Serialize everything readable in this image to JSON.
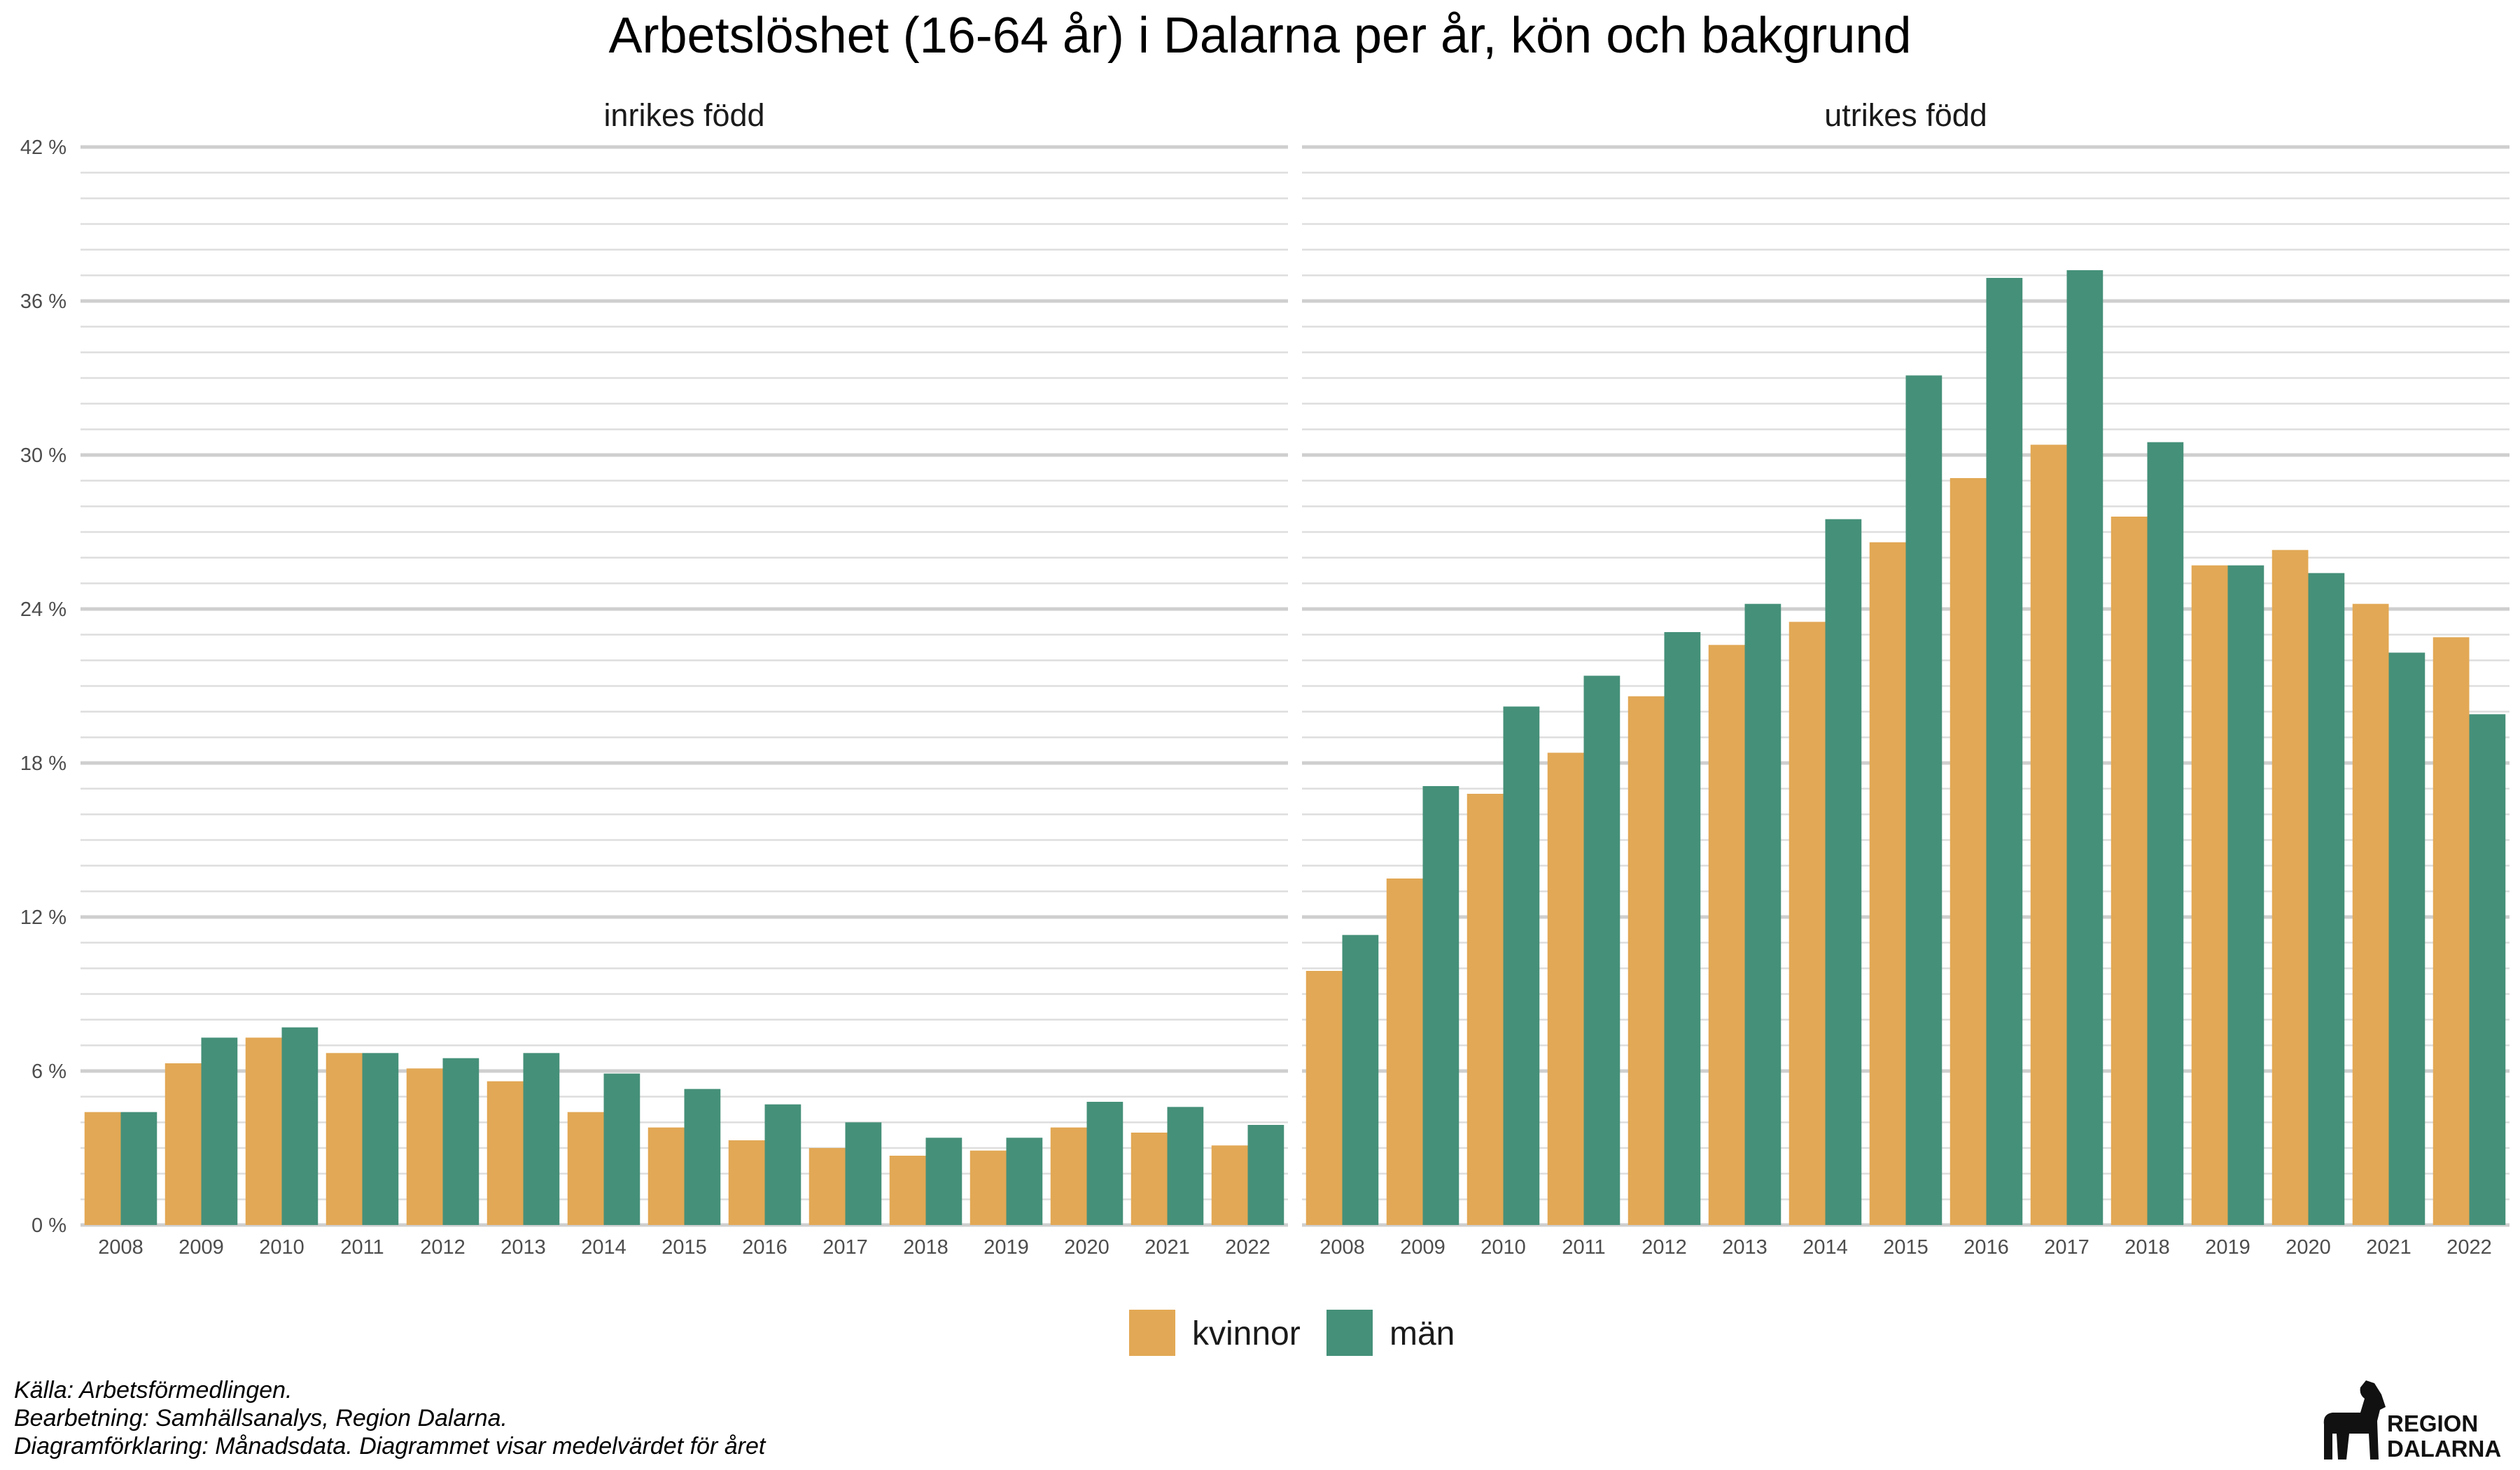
{
  "title": "Arbetslöshet (16-64 år) i Dalarna per år, kön och bakgrund",
  "legend": [
    {
      "label": "kvinnor",
      "color": "#E2A855"
    },
    {
      "label": "män",
      "color": "#459079"
    }
  ],
  "caption": [
    "Källa: Arbetsförmedlingen.",
    "Bearbetning: Samhällsanalys, Region Dalarna.",
    "Diagramförklaring: Månadsdata. Diagrammet visar medelvärdet för året"
  ],
  "logo": {
    "line1": "REGION",
    "line2": "DALARNA",
    "icon": "dala-horse-icon"
  },
  "chart_data": [
    {
      "type": "bar",
      "title": "inrikes född",
      "categories": [
        "2008",
        "2009",
        "2010",
        "2011",
        "2012",
        "2013",
        "2014",
        "2015",
        "2016",
        "2017",
        "2018",
        "2019",
        "2020",
        "2021",
        "2022"
      ],
      "series": [
        {
          "name": "kvinnor",
          "values": [
            4.4,
            6.3,
            7.3,
            6.7,
            6.1,
            5.6,
            4.4,
            3.8,
            3.3,
            3.0,
            2.7,
            2.9,
            3.8,
            3.6,
            3.1
          ]
        },
        {
          "name": "män",
          "values": [
            4.4,
            7.3,
            7.7,
            6.7,
            6.5,
            6.7,
            5.9,
            5.3,
            4.7,
            4.0,
            3.4,
            3.4,
            4.8,
            4.6,
            3.9
          ]
        }
      ],
      "ylim": [
        0,
        42
      ],
      "yticks": [
        0,
        6,
        12,
        18,
        24,
        30,
        36,
        42
      ],
      "ytick_labels": [
        "0 %",
        "6 %",
        "12 %",
        "18 %",
        "24 %",
        "30 %",
        "36 %",
        "42 %"
      ],
      "grid": true
    },
    {
      "type": "bar",
      "title": "utrikes född",
      "categories": [
        "2008",
        "2009",
        "2010",
        "2011",
        "2012",
        "2013",
        "2014",
        "2015",
        "2016",
        "2017",
        "2018",
        "2019",
        "2020",
        "2021",
        "2022"
      ],
      "series": [
        {
          "name": "kvinnor",
          "values": [
            9.9,
            13.5,
            16.8,
            18.4,
            20.6,
            22.6,
            23.5,
            26.6,
            29.1,
            30.4,
            27.6,
            25.7,
            26.3,
            24.2,
            22.9
          ]
        },
        {
          "name": "män",
          "values": [
            11.3,
            17.1,
            20.2,
            21.4,
            23.1,
            24.2,
            27.5,
            33.1,
            36.9,
            37.2,
            30.5,
            25.7,
            25.4,
            22.3,
            19.9
          ]
        }
      ],
      "ylim": [
        0,
        42
      ],
      "yticks": [
        0,
        6,
        12,
        18,
        24,
        30,
        36,
        42
      ],
      "ytick_labels": [
        "0 %",
        "6 %",
        "12 %",
        "18 %",
        "24 %",
        "30 %",
        "36 %",
        "42 %"
      ],
      "grid": true
    }
  ]
}
